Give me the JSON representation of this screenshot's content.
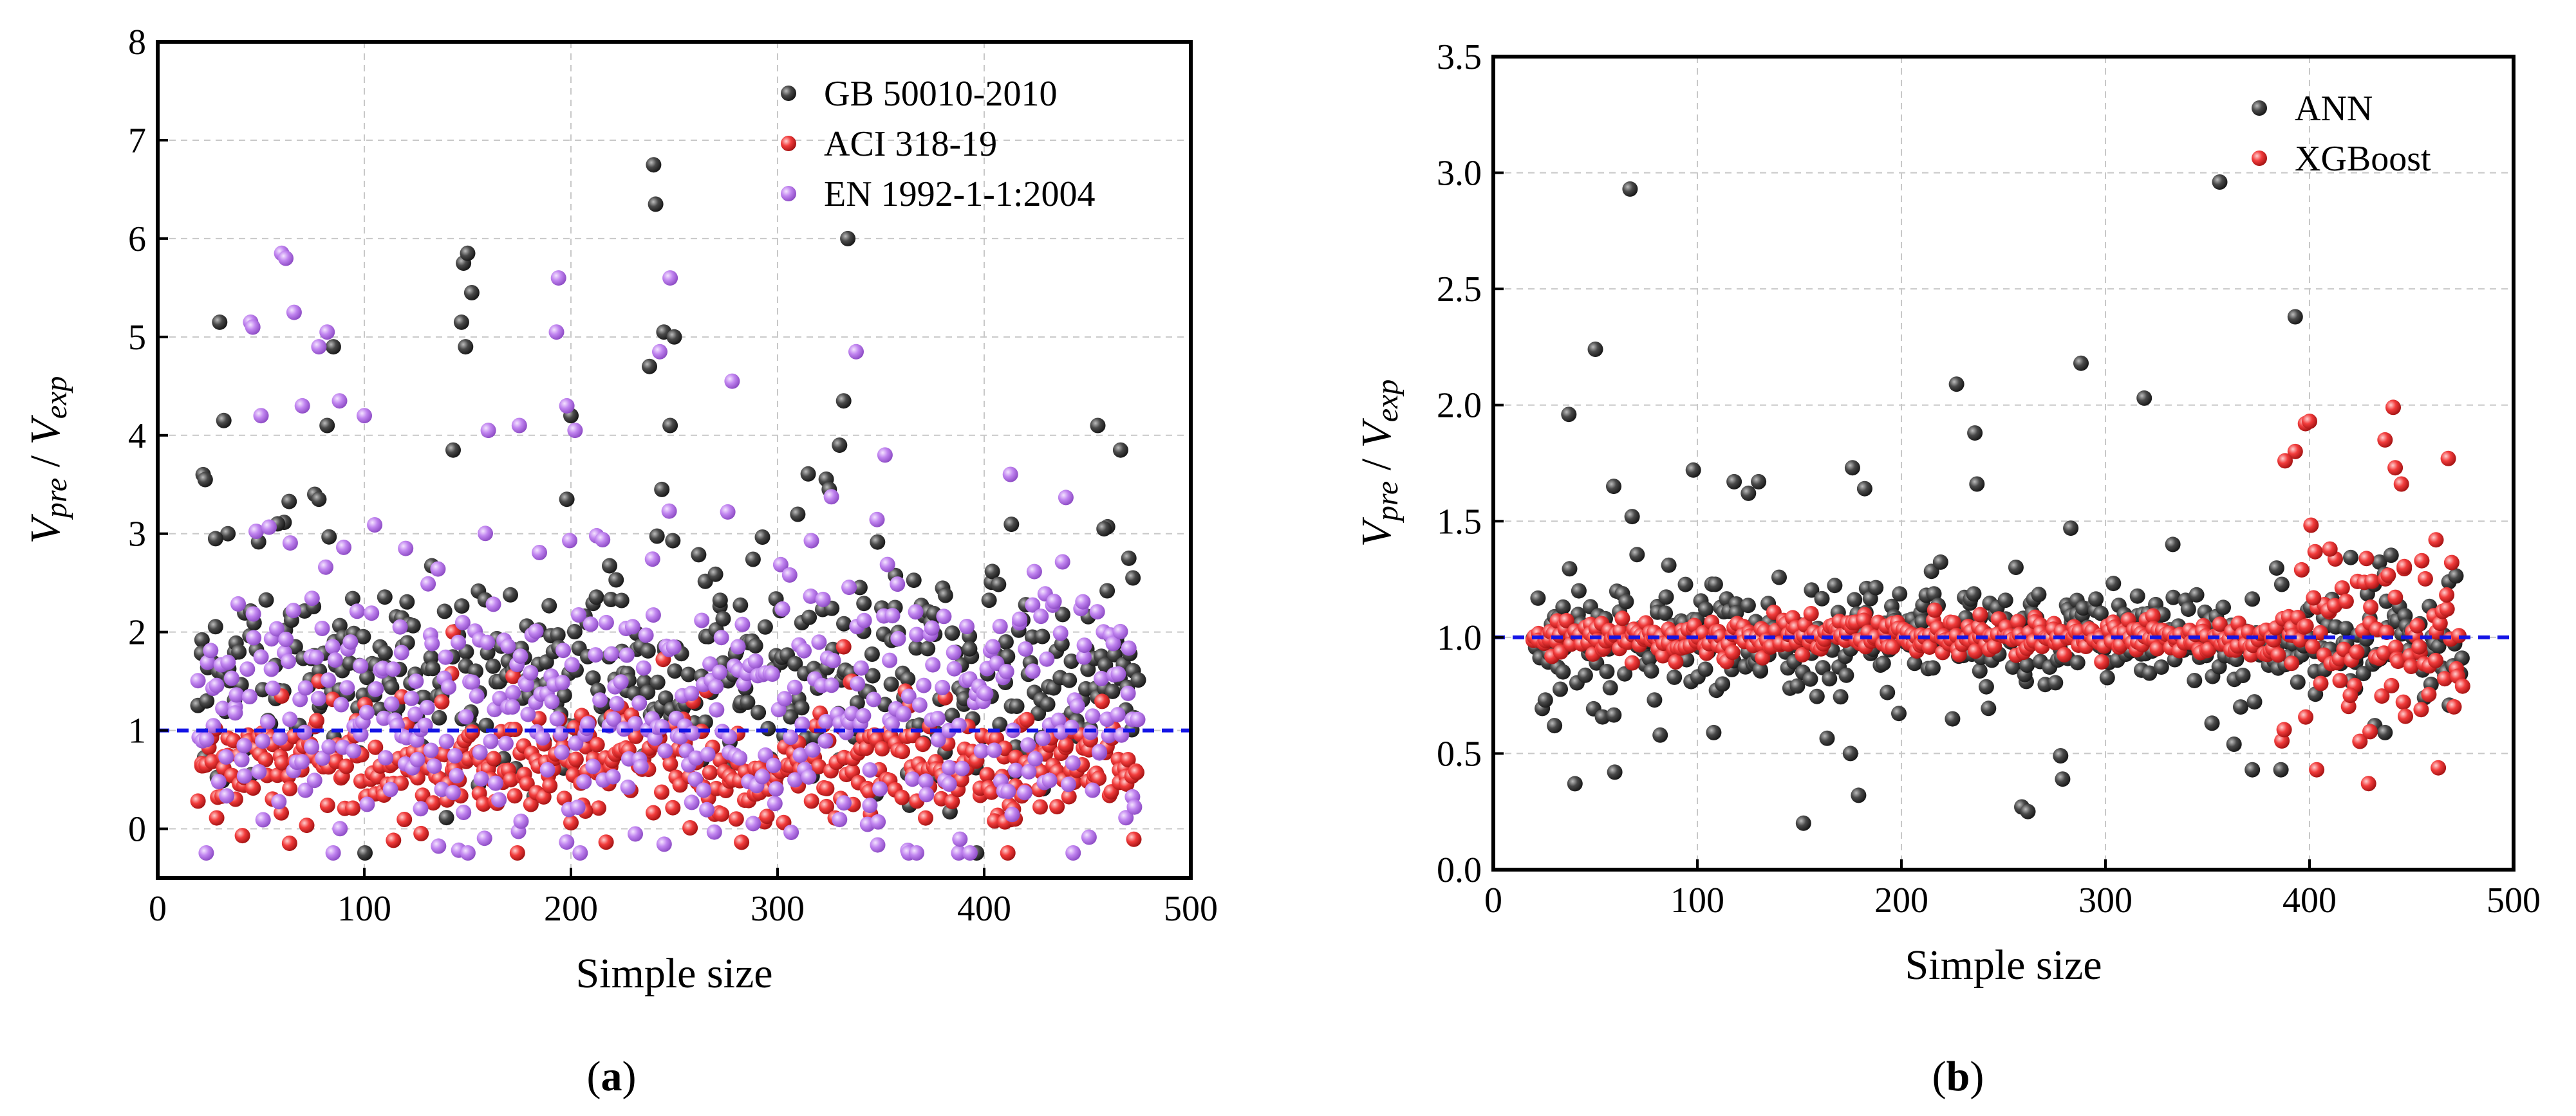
{
  "chart_data": [
    {
      "type": "scatter",
      "caption_letter": "a",
      "caption": "(a)",
      "xlabel": "Simple size",
      "ylabel_main": "V",
      "ylabel_sub_num": "pre",
      "ylabel_sep": " / ",
      "ylabel_sub_den": "exp",
      "xlim": [
        0,
        500
      ],
      "ylim": [
        -0.5,
        8
      ],
      "xticks": [
        0,
        100,
        200,
        300,
        400,
        500
      ],
      "yticks": [
        0,
        1,
        2,
        3,
        4,
        5,
        6,
        7,
        8
      ],
      "grid": true,
      "legend_position": "top-right",
      "reference_line_y": 1.0,
      "series": [
        {
          "name": "GB 50010-2010",
          "color": "#2e2e2e",
          "n": 460,
          "base": 1.6,
          "spread": 0.55,
          "seed": 11,
          "outliers": [
            [
              22,
              3.6
            ],
            [
              23,
              3.55
            ],
            [
              30,
              5.15
            ],
            [
              32,
              4.15
            ],
            [
              34,
              3.0
            ],
            [
              28,
              2.95
            ],
            [
              58,
              3.1
            ],
            [
              76,
              3.4
            ],
            [
              78,
              3.35
            ],
            [
              85,
              4.9
            ],
            [
              82,
              4.1
            ],
            [
              148,
              5.75
            ],
            [
              150,
              5.85
            ],
            [
              147,
              5.15
            ],
            [
              152,
              5.45
            ],
            [
              149,
              4.9
            ],
            [
              143,
              3.85
            ],
            [
              198,
              3.35
            ],
            [
              200,
              4.2
            ],
            [
              240,
              6.75
            ],
            [
              241,
              6.35
            ],
            [
              238,
              4.7
            ],
            [
              245,
              5.05
            ],
            [
              250,
              5.0
            ],
            [
              248,
              4.1
            ],
            [
              244,
              3.45
            ],
            [
              334,
              6.0
            ],
            [
              332,
              4.35
            ],
            [
              330,
              3.9
            ],
            [
              325,
              3.45
            ],
            [
              455,
              4.1
            ],
            [
              466,
              3.85
            ],
            [
              458,
              3.05
            ],
            [
              470,
              2.75
            ],
            [
              472,
              2.55
            ]
          ]
        },
        {
          "name": "ACI 318-19",
          "color": "#e8262d",
          "n": 460,
          "base": 0.65,
          "spread": 0.28,
          "seed": 23,
          "outliers": [
            [
              60,
              1.35
            ],
            [
              78,
              1.5
            ],
            [
              143,
              2.0
            ],
            [
              172,
              1.55
            ],
            [
              332,
              1.85
            ],
            [
              336,
              1.5
            ],
            [
              345,
              0.15
            ],
            [
              280,
              0.1
            ],
            [
              207,
              0.18
            ],
            [
              405,
              0.08
            ],
            [
              410,
              0.07
            ],
            [
              415,
              0.1
            ]
          ]
        },
        {
          "name": "EN 1992-1-1:2004",
          "color": "#b46ee6",
          "n": 460,
          "base": 1.25,
          "spread": 0.75,
          "seed": 37,
          "outliers": [
            [
              60,
              5.85
            ],
            [
              62,
              5.8
            ],
            [
              66,
              5.25
            ],
            [
              45,
              5.15
            ],
            [
              46,
              5.1
            ],
            [
              78,
              4.9
            ],
            [
              82,
              5.05
            ],
            [
              88,
              4.35
            ],
            [
              100,
              4.2
            ],
            [
              50,
              4.2
            ],
            [
              70,
              4.3
            ],
            [
              194,
              5.6
            ],
            [
              193,
              5.05
            ],
            [
              198,
              4.3
            ],
            [
              202,
              4.05
            ],
            [
              248,
              5.6
            ],
            [
              243,
              4.85
            ],
            [
              278,
              4.55
            ],
            [
              338,
              4.85
            ],
            [
              352,
              3.8
            ],
            [
              160,
              4.05
            ],
            [
              175,
              4.1
            ],
            [
              120,
              2.85
            ],
            [
              125,
              1.5
            ]
          ]
        }
      ]
    },
    {
      "type": "scatter",
      "caption_letter": "b",
      "caption": "(b)",
      "xlabel": "Simple size",
      "ylabel_main": "V",
      "ylabel_sub_num": "pre",
      "ylabel_sep": " / ",
      "ylabel_sub_den": "exp",
      "xlim": [
        0,
        500
      ],
      "ylim": [
        0,
        3.5
      ],
      "xticks": [
        0,
        100,
        200,
        300,
        400,
        500
      ],
      "yticks": [
        "0.0",
        "0.5",
        "1.0",
        "1.5",
        "2.0",
        "2.5",
        "3.0",
        "3.5"
      ],
      "grid": true,
      "legend_position": "top-right",
      "reference_line_y": 1.0,
      "series": [
        {
          "name": "ANN",
          "color": "#2e2e2e",
          "n": 460,
          "base": 1.0,
          "spread": 0.14,
          "seed": 51,
          "outliers": [
            [
              67,
              2.93
            ],
            [
              356,
              2.96
            ],
            [
              50,
              2.24
            ],
            [
              227,
              2.09
            ],
            [
              288,
              2.18
            ],
            [
              319,
              2.03
            ],
            [
              393,
              2.38
            ],
            [
              37,
              1.96
            ],
            [
              59,
              1.65
            ],
            [
              68,
              1.52
            ],
            [
              98,
              1.72
            ],
            [
              118,
              1.67
            ],
            [
              125,
              1.62
            ],
            [
              130,
              1.67
            ],
            [
              176,
              1.73
            ],
            [
              182,
              1.64
            ],
            [
              236,
              1.88
            ],
            [
              237,
              1.66
            ],
            [
              283,
              1.47
            ],
            [
              333,
              1.4
            ],
            [
              40,
              0.37
            ],
            [
              152,
              0.2
            ],
            [
              259,
              0.27
            ],
            [
              262,
              0.25
            ],
            [
              175,
              0.5
            ],
            [
              179,
              0.32
            ],
            [
              278,
              0.49
            ],
            [
              279,
              0.39
            ],
            [
              108,
              0.59
            ],
            [
              30,
              0.62
            ],
            [
              363,
              0.54
            ],
            [
              372,
              0.43
            ],
            [
              386,
              0.43
            ],
            [
              432,
              0.62
            ],
            [
              437,
              0.59
            ]
          ]
        },
        {
          "name": "XGBoost",
          "color": "#e8262d",
          "n": 460,
          "base": 1.0,
          "spread": 0.035,
          "seed": 67,
          "outliers": [
            [
              398,
              1.92
            ],
            [
              400,
              1.93
            ],
            [
              393,
              1.8
            ],
            [
              388,
              1.76
            ],
            [
              441,
              1.99
            ],
            [
              437,
              1.85
            ],
            [
              442,
              1.73
            ],
            [
              468,
              1.77
            ],
            [
              445,
              1.66
            ],
            [
              462,
              1.42
            ],
            [
              455,
              1.33
            ],
            [
              410,
              1.38
            ],
            [
              447,
              0.66
            ],
            [
              475,
              0.79
            ],
            [
              420,
              0.75
            ],
            [
              402,
              1.17
            ],
            [
              430,
              1.13
            ]
          ]
        }
      ]
    }
  ]
}
